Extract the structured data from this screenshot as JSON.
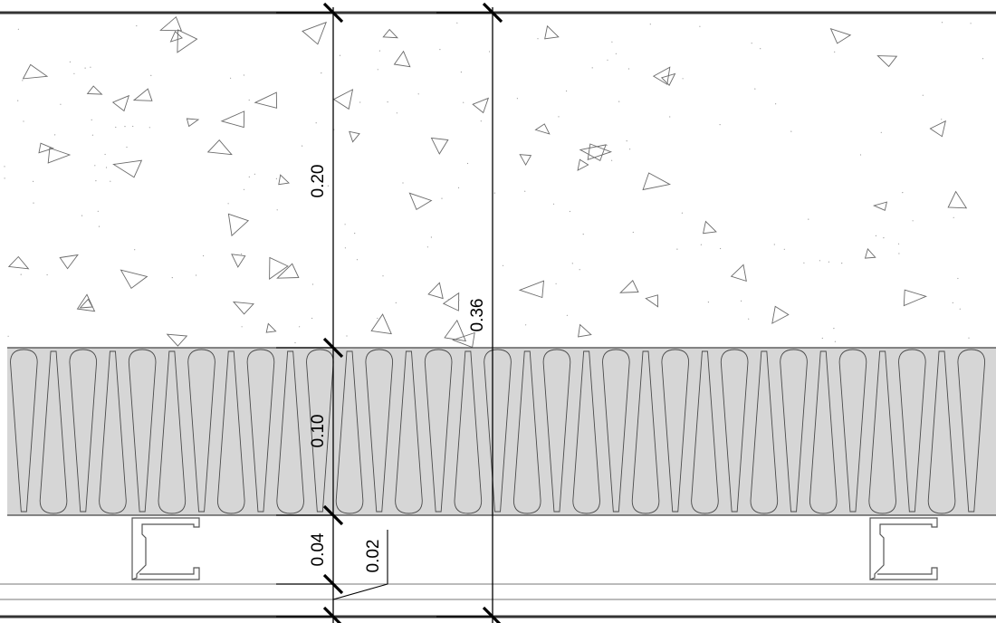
{
  "drawing": {
    "title": "",
    "layers": [
      {
        "name": "concrete",
        "hatch": "concrete-aggregate"
      },
      {
        "name": "insulation",
        "hatch": "batt-insulation"
      },
      {
        "name": "cavity-with-steel-studs",
        "hatch": "none"
      },
      {
        "name": "board-lining",
        "hatch": "none"
      }
    ],
    "dimensions": {
      "concrete": "0.20",
      "insulation": "0.10",
      "cavity": "0.04",
      "lining": "0.02",
      "total": "0.36"
    }
  },
  "colors": {
    "line": "#000000",
    "hatch": "#6b6b6b",
    "insulation_fill": "#d6d6d6",
    "insulation_stroke": "#4a4a4a",
    "background": "#ffffff"
  }
}
